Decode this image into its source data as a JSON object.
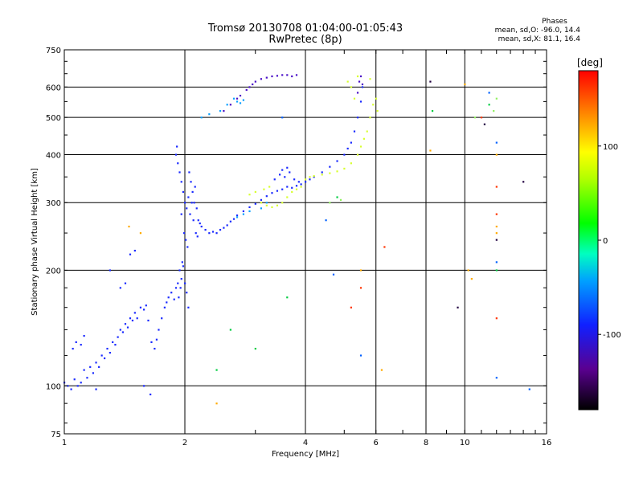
{
  "chart_data": {
    "type": "scatter",
    "title": "Tromsø 20130708 01:04:00-01:05:43",
    "subtitle": "RwPretec (8p)",
    "xlabel": "Frequency [MHz]",
    "ylabel": "Stationary phase Virtual Height [km]",
    "x_scale": "log",
    "y_scale": "log",
    "xlim": [
      1,
      16
    ],
    "ylim": [
      75,
      750
    ],
    "x_ticks": [
      1,
      2,
      4,
      6,
      8,
      10,
      16
    ],
    "y_ticks": [
      75,
      100,
      200,
      300,
      400,
      500,
      600,
      750
    ],
    "grid": true,
    "phases_header": "Phases",
    "phases_o": "mean, sd,O: -96.0, 14.4",
    "phases_x": "mean, sd,X: 81.1, 16.4",
    "colorbar": {
      "label": "[deg]",
      "range": [
        -180,
        180
      ],
      "ticks": [
        100,
        0,
        -100
      ]
    },
    "series": [
      {
        "phase_deg": -100,
        "color": "#1a2aff",
        "points": [
          [
            1.0,
            102
          ],
          [
            1.02,
            100
          ],
          [
            1.04,
            98
          ],
          [
            1.06,
            104
          ],
          [
            1.08,
            100
          ],
          [
            1.1,
            102
          ],
          [
            1.12,
            110
          ],
          [
            1.14,
            105
          ],
          [
            1.16,
            112
          ],
          [
            1.18,
            108
          ],
          [
            1.2,
            115
          ],
          [
            1.22,
            112
          ],
          [
            1.24,
            120
          ],
          [
            1.26,
            118
          ],
          [
            1.28,
            125
          ],
          [
            1.3,
            122
          ],
          [
            1.32,
            130
          ],
          [
            1.34,
            128
          ],
          [
            1.36,
            134
          ],
          [
            1.38,
            140
          ],
          [
            1.4,
            138
          ],
          [
            1.42,
            145
          ],
          [
            1.44,
            142
          ],
          [
            1.46,
            150
          ],
          [
            1.48,
            148
          ],
          [
            1.5,
            155
          ],
          [
            1.52,
            150
          ],
          [
            1.55,
            160
          ],
          [
            1.58,
            158
          ],
          [
            1.6,
            162
          ],
          [
            1.62,
            148
          ],
          [
            1.65,
            130
          ],
          [
            1.68,
            125
          ],
          [
            1.7,
            132
          ],
          [
            1.72,
            140
          ],
          [
            1.75,
            150
          ],
          [
            1.78,
            160
          ],
          [
            1.8,
            165
          ],
          [
            1.82,
            170
          ],
          [
            1.85,
            175
          ],
          [
            1.88,
            168
          ],
          [
            1.9,
            180
          ],
          [
            1.92,
            185
          ],
          [
            1.94,
            200
          ],
          [
            1.96,
            190
          ],
          [
            1.98,
            205
          ],
          [
            2.0,
            185
          ],
          [
            2.02,
            175
          ],
          [
            2.04,
            160
          ],
          [
            1.97,
            210
          ],
          [
            1.95,
            180
          ],
          [
            1.93,
            170
          ],
          [
            1.9,
            400
          ],
          [
            1.92,
            380
          ],
          [
            1.94,
            360
          ],
          [
            1.96,
            340
          ],
          [
            1.98,
            320
          ],
          [
            2.0,
            300
          ],
          [
            2.02,
            290
          ],
          [
            2.04,
            310
          ],
          [
            2.06,
            280
          ],
          [
            2.08,
            300
          ],
          [
            2.1,
            270
          ],
          [
            2.12,
            330
          ],
          [
            2.14,
            290
          ],
          [
            2.16,
            270
          ],
          [
            2.18,
            265
          ],
          [
            2.2,
            260
          ],
          [
            2.25,
            255
          ],
          [
            2.3,
            250
          ],
          [
            2.35,
            252
          ],
          [
            2.4,
            250
          ],
          [
            2.45,
            255
          ],
          [
            2.5,
            258
          ],
          [
            2.55,
            262
          ],
          [
            2.6,
            268
          ],
          [
            2.65,
            272
          ],
          [
            2.7,
            278
          ],
          [
            2.8,
            285
          ],
          [
            2.9,
            292
          ],
          [
            3.0,
            298
          ],
          [
            3.1,
            305
          ],
          [
            3.2,
            312
          ],
          [
            3.3,
            318
          ],
          [
            3.4,
            322
          ],
          [
            3.5,
            325
          ],
          [
            3.6,
            330
          ],
          [
            3.7,
            328
          ],
          [
            3.8,
            332
          ],
          [
            3.9,
            335
          ],
          [
            4.0,
            340
          ],
          [
            4.1,
            345
          ],
          [
            4.2,
            350
          ],
          [
            4.4,
            360
          ],
          [
            4.6,
            372
          ],
          [
            4.8,
            385
          ],
          [
            5.0,
            400
          ],
          [
            5.1,
            415
          ],
          [
            5.2,
            430
          ],
          [
            5.3,
            460
          ],
          [
            5.4,
            500
          ],
          [
            5.5,
            550
          ],
          [
            5.55,
            600
          ],
          [
            1.91,
            420
          ],
          [
            2.05,
            360
          ],
          [
            2.07,
            340
          ],
          [
            2.09,
            320
          ],
          [
            1.99,
            250
          ],
          [
            2.01,
            240
          ],
          [
            2.03,
            230
          ],
          [
            1.96,
            280
          ],
          [
            2.11,
            300
          ],
          [
            2.13,
            250
          ],
          [
            2.15,
            245
          ],
          [
            3.55,
            350
          ],
          [
            3.65,
            360
          ],
          [
            3.75,
            345
          ],
          [
            3.85,
            340
          ],
          [
            3.6,
            370
          ],
          [
            3.45,
            355
          ],
          [
            3.35,
            345
          ],
          [
            3.5,
            365
          ],
          [
            1.05,
            125
          ],
          [
            1.07,
            130
          ],
          [
            1.1,
            128
          ],
          [
            1.12,
            135
          ],
          [
            1.3,
            200
          ],
          [
            1.46,
            220
          ],
          [
            1.5,
            225
          ],
          [
            1.38,
            180
          ],
          [
            1.42,
            185
          ],
          [
            1.64,
            95
          ],
          [
            1.58,
            100
          ],
          [
            1.2,
            98
          ]
        ]
      },
      {
        "phase_deg": -120,
        "color": "#4a10c8",
        "points": [
          [
            3.0,
            620
          ],
          [
            3.1,
            630
          ],
          [
            3.2,
            635
          ],
          [
            3.3,
            640
          ],
          [
            3.4,
            642
          ],
          [
            3.5,
            645
          ],
          [
            3.6,
            645
          ],
          [
            3.7,
            640
          ],
          [
            3.8,
            645
          ],
          [
            2.7,
            560
          ],
          [
            2.75,
            570
          ],
          [
            2.85,
            590
          ],
          [
            2.9,
            600
          ],
          [
            2.95,
            610
          ],
          [
            2.6,
            540
          ],
          [
            2.5,
            520
          ],
          [
            5.45,
            620
          ],
          [
            5.5,
            640
          ],
          [
            5.55,
            610
          ],
          [
            5.4,
            580
          ]
        ]
      },
      {
        "phase_deg": -60,
        "color": "#0aa0ff",
        "points": [
          [
            2.65,
            560
          ],
          [
            2.7,
            550
          ],
          [
            2.75,
            545
          ],
          [
            2.8,
            555
          ],
          [
            2.55,
            540
          ],
          [
            2.45,
            520
          ],
          [
            2.3,
            510
          ],
          [
            2.2,
            500
          ],
          [
            3.2,
            300
          ],
          [
            3.1,
            290
          ],
          [
            2.9,
            285
          ],
          [
            2.8,
            280
          ],
          [
            2.7,
            275
          ]
        ]
      },
      {
        "phase_deg": 80,
        "color": "#d8ff30",
        "points": [
          [
            3.1,
            300
          ],
          [
            3.2,
            295
          ],
          [
            3.3,
            292
          ],
          [
            3.4,
            295
          ],
          [
            3.5,
            300
          ],
          [
            3.6,
            310
          ],
          [
            3.7,
            320
          ],
          [
            3.8,
            325
          ],
          [
            3.9,
            330
          ],
          [
            4.0,
            345
          ],
          [
            4.1,
            350
          ],
          [
            4.2,
            352
          ],
          [
            4.4,
            355
          ],
          [
            4.6,
            358
          ],
          [
            4.8,
            362
          ],
          [
            5.0,
            368
          ],
          [
            5.2,
            380
          ],
          [
            5.4,
            400
          ],
          [
            5.5,
            420
          ],
          [
            5.6,
            440
          ],
          [
            5.7,
            460
          ],
          [
            5.8,
            500
          ],
          [
            5.9,
            540
          ],
          [
            6.0,
            560
          ],
          [
            6.05,
            520
          ],
          [
            5.3,
            560
          ],
          [
            5.2,
            600
          ],
          [
            5.1,
            620
          ],
          [
            5.4,
            640
          ],
          [
            5.8,
            630
          ],
          [
            3.0,
            320
          ],
          [
            2.9,
            315
          ],
          [
            3.25,
            330
          ],
          [
            3.15,
            325
          ]
        ]
      },
      {
        "phase_deg": 120,
        "color": "#ffaa00",
        "points": [
          [
            10.0,
            610
          ],
          [
            10.2,
            200
          ],
          [
            10.4,
            190
          ],
          [
            12.0,
            260
          ],
          [
            12.0,
            250
          ],
          [
            8.2,
            410
          ],
          [
            1.45,
            260
          ],
          [
            1.55,
            250
          ],
          [
            2.4,
            90
          ],
          [
            5.5,
            200
          ],
          [
            6.2,
            110
          ],
          [
            12.0,
            400
          ]
        ]
      },
      {
        "phase_deg": 150,
        "color": "#ff3300",
        "points": [
          [
            12.0,
            330
          ],
          [
            11.0,
            500
          ],
          [
            5.5,
            180
          ],
          [
            6.3,
            230
          ],
          [
            12.0,
            150
          ],
          [
            12.0,
            280
          ],
          [
            5.2,
            160
          ]
        ]
      },
      {
        "phase_deg": 20,
        "color": "#00cc40",
        "points": [
          [
            2.6,
            140
          ],
          [
            3.0,
            125
          ],
          [
            2.4,
            110
          ],
          [
            3.6,
            170
          ],
          [
            4.8,
            310
          ],
          [
            12.0,
            200
          ],
          [
            11.5,
            540
          ],
          [
            8.3,
            520
          ]
        ]
      },
      {
        "phase_deg": 50,
        "color": "#90f060",
        "points": [
          [
            12.0,
            560
          ],
          [
            11.8,
            520
          ],
          [
            10.6,
            500
          ],
          [
            4.6,
            300
          ],
          [
            4.9,
            305
          ]
        ]
      },
      {
        "phase_deg": -170,
        "color": "#200040",
        "points": [
          [
            9.6,
            160
          ],
          [
            8.2,
            620
          ],
          [
            12.0,
            240
          ],
          [
            14.0,
            340
          ],
          [
            11.2,
            480
          ]
        ]
      },
      {
        "phase_deg": -80,
        "color": "#0060ff",
        "points": [
          [
            12.0,
            430
          ],
          [
            11.5,
            580
          ],
          [
            12.0,
            210
          ],
          [
            4.5,
            270
          ],
          [
            3.5,
            500
          ],
          [
            14.5,
            98
          ],
          [
            12.0,
            105
          ],
          [
            5.5,
            120
          ],
          [
            4.7,
            195
          ]
        ]
      }
    ]
  }
}
